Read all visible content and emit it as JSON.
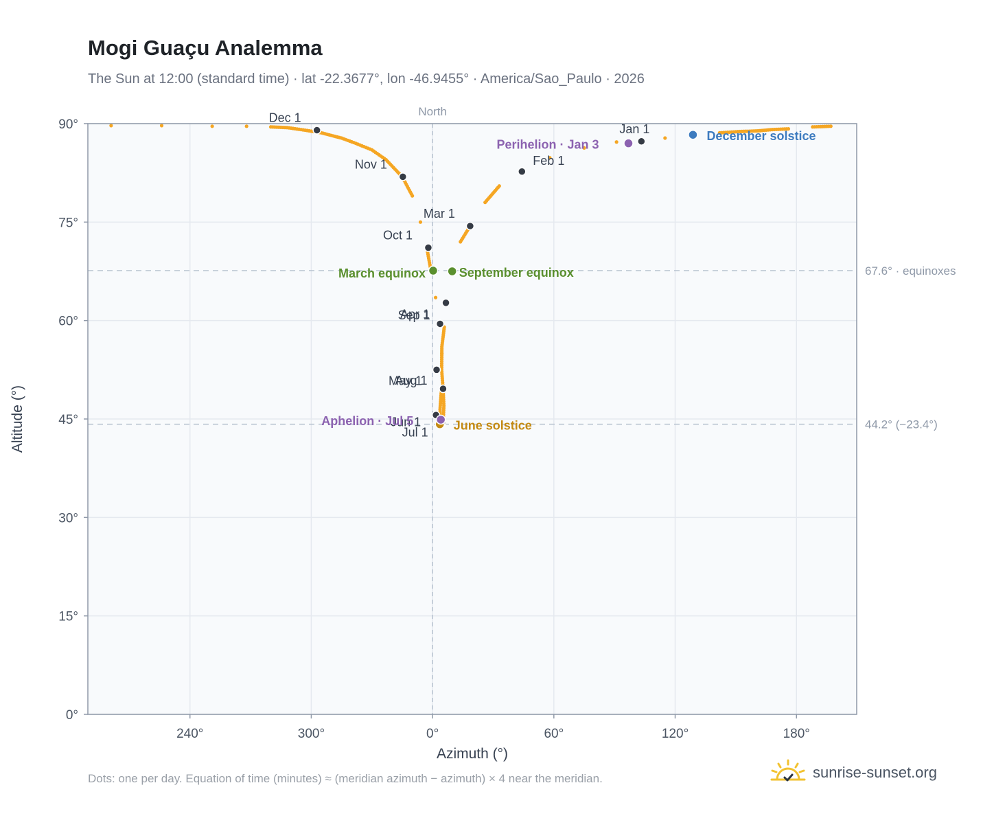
{
  "title": "Mogi Guaçu Analemma",
  "subtitle": "The Sun at 12:00 (standard time) · lat -22.3677°, lon -46.9455° · America/Sao_Paulo · 2026",
  "footnote": "Dots: one per day. Equation of time (minutes) ≈ (meridian azimuth − azimuth) × 4 near the meridian.",
  "brand": {
    "name": "sunrise-sunset.org",
    "icon": "sun-check-icon"
  },
  "colors": {
    "path": "#f5a623",
    "month_dot": "#353b45",
    "equinox": "#5a8f2e",
    "june_solstice": "#c48a12",
    "december_solstice": "#3d7bbf",
    "perihelion_aphelion": "#8c62b0",
    "plot_bg": "#f8fafc",
    "grid": "#e5e9ef",
    "axis": "#8f99a8"
  },
  "chart_data": {
    "type": "scatter",
    "title": "Mogi Guaçu Analemma",
    "xlabel": "Azimuth (°)",
    "ylabel": "Altitude (°)",
    "x_ticks": [
      "240°",
      "300°",
      "0°",
      "60°",
      "120°",
      "180°"
    ],
    "x_tick_values": [
      240,
      300,
      360,
      420,
      480,
      540
    ],
    "y_ticks": [
      "0°",
      "15°",
      "30°",
      "45°",
      "60°",
      "75°",
      "90°"
    ],
    "y_tick_values": [
      0,
      15,
      30,
      45,
      60,
      75,
      90
    ],
    "xlim": [
      189.5,
      569.8
    ],
    "ylim": [
      0,
      90
    ],
    "grid": true,
    "north_label": "North",
    "north_azimuth": 360,
    "reference_lines": [
      {
        "altitude": 67.6,
        "label": "67.6° · equinoxes"
      },
      {
        "altitude": 44.2,
        "label": "44.2° (−23.4°)"
      }
    ],
    "path_points": [
      [
        201,
        89.7
      ],
      [
        226,
        89.7
      ],
      [
        251,
        89.6
      ],
      [
        268,
        89.6
      ],
      [
        280,
        89.5
      ],
      [
        288,
        89.4
      ],
      [
        297,
        89.0
      ],
      [
        305,
        88.6
      ],
      [
        315,
        87.8
      ],
      [
        322,
        87.0
      ],
      [
        330,
        86.0
      ],
      [
        337,
        84.5
      ],
      [
        345,
        81.9
      ],
      [
        350,
        79.0
      ],
      [
        354,
        75.0
      ],
      [
        357.2,
        71.0
      ],
      [
        359.2,
        67.6
      ],
      [
        361.5,
        63.5
      ],
      [
        363.7,
        59.5
      ],
      [
        364.6,
        55.0
      ],
      [
        364.4,
        49.5
      ],
      [
        363.7,
        46.5
      ],
      [
        363.8,
        44.6
      ],
      [
        364.7,
        44.2
      ],
      [
        365.3,
        45.0
      ],
      [
        365.6,
        47.0
      ],
      [
        365.2,
        49.6
      ],
      [
        364.5,
        52.5
      ],
      [
        364.6,
        56.0
      ],
      [
        365.8,
        59.0
      ],
      [
        367.4,
        62.7
      ],
      [
        369.7,
        67.6
      ],
      [
        373.8,
        72.0
      ],
      [
        378.6,
        74.4
      ],
      [
        386,
        78.0
      ],
      [
        393,
        80.5
      ],
      [
        403.5,
        82.7
      ],
      [
        418,
        84.8
      ],
      [
        435,
        86.3
      ],
      [
        451,
        87.2
      ],
      [
        463,
        87.3
      ],
      [
        475,
        87.8
      ],
      [
        489,
        88.3
      ],
      [
        502,
        88.6
      ],
      [
        512,
        88.8
      ],
      [
        521,
        88.9
      ],
      [
        528,
        89.1
      ],
      [
        536,
        89.2
      ],
      [
        548,
        89.5
      ],
      [
        557,
        89.6
      ]
    ],
    "month_markers": [
      {
        "label": "Jan 1",
        "azimuth": 463.3,
        "altitude": 87.3
      },
      {
        "label": "Feb 1",
        "azimuth": 404.2,
        "altitude": 82.7
      },
      {
        "label": "Mar 1",
        "azimuth": 378.6,
        "altitude": 74.4
      },
      {
        "label": "Apr 1",
        "azimuth": 363.7,
        "altitude": 59.5
      },
      {
        "label": "May 1",
        "azimuth": 362.0,
        "altitude": 52.5
      },
      {
        "label": "Jun 1",
        "azimuth": 361.7,
        "altitude": 45.6
      },
      {
        "label": "Jul 1",
        "azimuth": 364.6,
        "altitude": 44.4
      },
      {
        "label": "Aug 1",
        "azimuth": 365.2,
        "altitude": 49.6
      },
      {
        "label": "Sep 1",
        "azimuth": 366.6,
        "altitude": 62.7
      },
      {
        "label": "Oct 1",
        "azimuth": 357.9,
        "altitude": 71.1
      },
      {
        "label": "Nov 1",
        "azimuth": 345.3,
        "altitude": 81.9
      },
      {
        "label": "Dec 1",
        "azimuth": 302.8,
        "altitude": 89.0
      }
    ],
    "events": [
      {
        "label": "March equinox",
        "azimuth": 360.3,
        "altitude": 67.6,
        "color": "#5a8f2e"
      },
      {
        "label": "September equinox",
        "azimuth": 369.7,
        "altitude": 67.5,
        "color": "#5a8f2e"
      },
      {
        "label": "June solstice",
        "azimuth": 363.6,
        "altitude": 44.2,
        "color": "#c48a12"
      },
      {
        "label": "December solstice",
        "azimuth": 488.8,
        "altitude": 88.3,
        "color": "#3d7bbf"
      },
      {
        "label": "Perihelion · Jan 3",
        "azimuth": 456.9,
        "altitude": 87.0,
        "color": "#8c62b0"
      },
      {
        "label": "Aphelion · Jul 5",
        "azimuth": 364.1,
        "altitude": 44.9,
        "color": "#8c62b0"
      }
    ]
  }
}
